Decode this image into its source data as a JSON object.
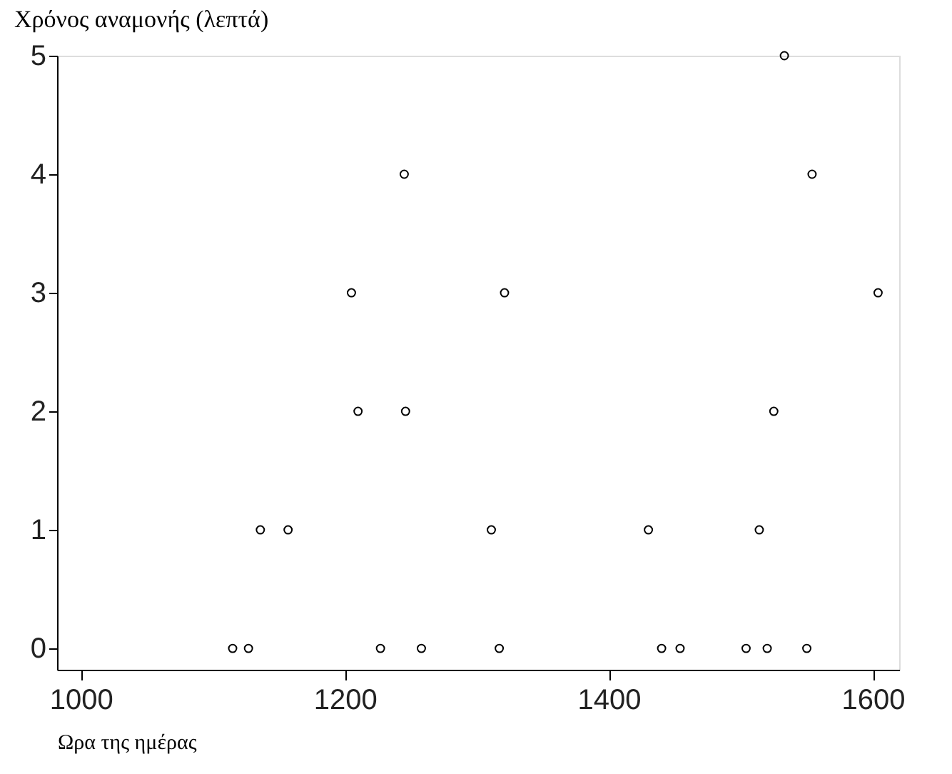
{
  "chart_data": {
    "type": "scatter",
    "xlabel": "Ωρα της ημέρας",
    "ylabel": "Χρόνος αναμονής (λεπτά)",
    "x": [
      1533,
      1245,
      1554,
      1205,
      1321,
      1604,
      1210,
      1246,
      1525,
      1136,
      1157,
      1311,
      1430,
      1514,
      1115,
      1127,
      1227,
      1258,
      1317,
      1440,
      1454,
      1504,
      1520,
      1550
    ],
    "values": [
      5,
      4,
      4,
      3,
      3,
      3,
      2,
      2,
      2,
      1,
      1,
      1,
      1,
      1,
      0,
      0,
      0,
      0,
      0,
      0,
      0,
      0,
      0,
      0
    ],
    "color": "#000000",
    "marker": "circle",
    "grid": false,
    "xlim": [
      982,
      1620
    ],
    "xticks": [
      1000,
      1200,
      1400,
      1600
    ],
    "ylim": [
      -0.18,
      5
    ],
    "yticks": [
      0,
      1,
      2,
      3,
      4,
      5
    ]
  }
}
